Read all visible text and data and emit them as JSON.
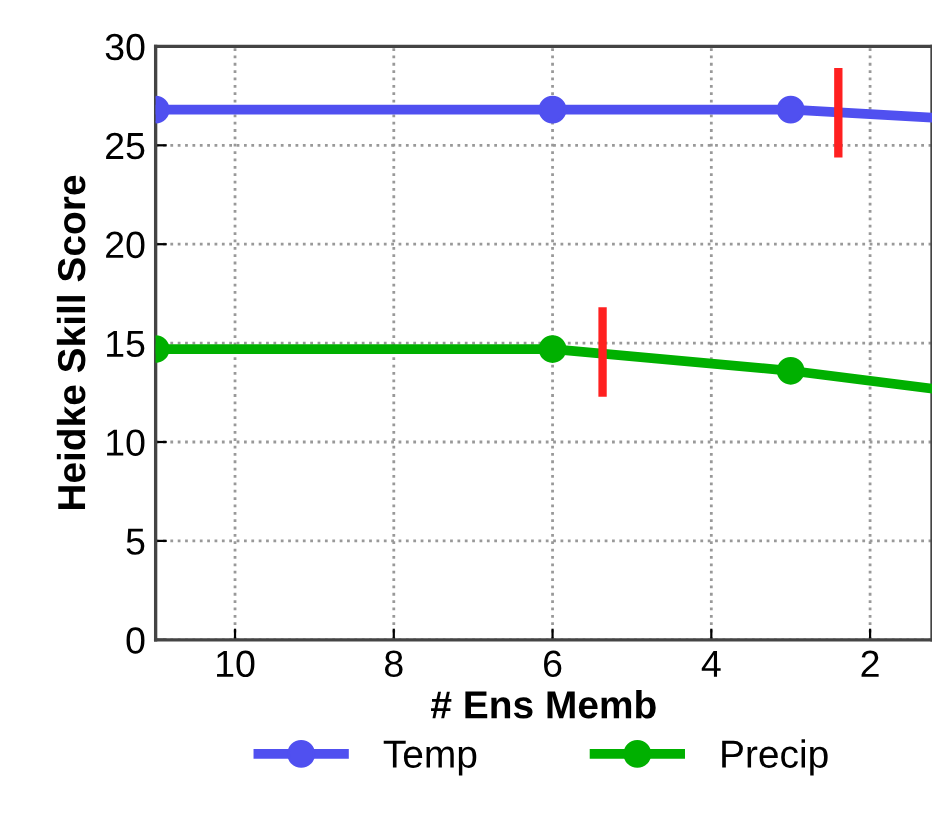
{
  "chart_data": {
    "type": "line",
    "xlabel": "# Ens Memb",
    "ylabel": "Heidke Skill Score",
    "xlim": [
      11,
      1.22
    ],
    "xticks": [
      10,
      8,
      6,
      4,
      2
    ],
    "ylim": [
      0,
      30
    ],
    "yticks": [
      0,
      5,
      10,
      15,
      20,
      25,
      30
    ],
    "grid": true,
    "legend": "bottom",
    "line_style": "solid",
    "series": [
      {
        "name": "Temp",
        "color": "#5050f0",
        "marker": "circle",
        "x": [
          11,
          6,
          3,
          1.22
        ],
        "values": [
          26.8,
          26.8,
          26.8,
          26.4
        ]
      },
      {
        "name": "Precip",
        "color": "#00b000",
        "marker": "circle",
        "x": [
          11,
          6,
          3,
          1.22
        ],
        "values": [
          14.7,
          14.7,
          13.6,
          12.7
        ]
      },
      {
        "type": "step",
        "color": "#ff2020",
        "x": [
          2.4,
          2.4
        ],
        "values": [
          24.6,
          28.7
        ]
      },
      {
        "type": "step",
        "color": "#ff2020",
        "x": [
          5.37,
          5.37
        ],
        "values": [
          12.5,
          16.6
        ]
      }
    ]
  }
}
